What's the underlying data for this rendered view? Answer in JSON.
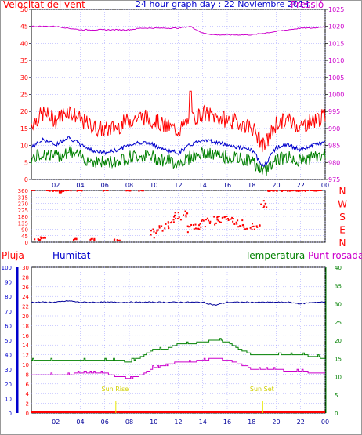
{
  "header": {
    "left_title": "Velocitat del vent",
    "center_title": "24 hour graph day : 22 Noviembre 2014",
    "right_title": "Pressió"
  },
  "lower_header": {
    "pluja": "Pluja",
    "humitat": "Humitat",
    "temperatura": "Temperatura",
    "punt_rosada": "Punt rosada"
  },
  "colors": {
    "wind_speed": "#ff0000",
    "wind_gust": "#ff0000",
    "wind_avg": "#0000cc",
    "wind_low": "#008000",
    "pressure": "#cc00cc",
    "humidity": "#000099",
    "temperature": "#008000",
    "dewpoint": "#cc00cc",
    "rain": "#ff0000",
    "sun": "#e8e800",
    "grid": "#9999ff"
  },
  "annotations": {
    "sunrise": "Sun Rise",
    "sunset": "Sun Set"
  },
  "chart_data": [
    {
      "type": "line",
      "title": "24 hour graph day : 22 Noviembre 2014",
      "xlabel": "",
      "ylabel_left": "Velocitat del vent",
      "ylabel_right": "Pressió",
      "x_tick_labels": [
        "02",
        "04",
        "06",
        "08",
        "10",
        "12",
        "14",
        "16",
        "18",
        "20",
        "22",
        "00"
      ],
      "y_left_ticks": [
        "0",
        "5",
        "10",
        "15",
        "20",
        "25",
        "30",
        "35",
        "40",
        "45",
        "50"
      ],
      "y_right_ticks": [
        "975",
        "980",
        "985",
        "990",
        "995",
        "1000",
        "1005",
        "1010",
        "1015",
        "1020",
        "1025"
      ],
      "ylim_left": [
        0,
        50
      ],
      "ylim_right": [
        975,
        1025
      ],
      "grid": true,
      "hours": [
        0,
        1,
        2,
        3,
        4,
        5,
        6,
        7,
        8,
        9,
        10,
        11,
        12,
        13,
        14,
        15,
        16,
        17,
        18,
        19,
        20,
        21,
        22,
        23,
        24
      ],
      "series": [
        {
          "name": "Velocitat del vent",
          "axis": "left",
          "values": [
            11,
            14,
            12,
            15,
            12,
            10,
            9,
            10,
            12,
            13,
            12,
            10,
            9,
            12,
            14,
            13,
            12,
            11,
            10,
            4,
            11,
            12,
            10,
            12,
            13
          ]
        },
        {
          "name": "Pressió",
          "axis": "right",
          "values": [
            1020,
            1020,
            1020,
            1019.5,
            1019,
            1019,
            1019,
            1019,
            1019,
            1019.5,
            1019.5,
            1019.5,
            1019.5,
            1020,
            1018,
            1017.5,
            1017.5,
            1017.5,
            1017.5,
            1018,
            1018.5,
            1019,
            1019.5,
            1019.5,
            1020
          ]
        }
      ]
    },
    {
      "type": "scatter",
      "title": "",
      "ylabel": "",
      "y_ticks": [
        "0",
        "45",
        "90",
        "135",
        "180",
        "225",
        "270",
        "315",
        "360"
      ],
      "ylim": [
        0,
        360
      ],
      "direction_labels": [
        "N",
        "W",
        "S",
        "E",
        "N"
      ],
      "x_tick_labels": [],
      "points_hour": [
        0,
        0.5,
        1,
        1.5,
        2,
        2.5,
        3,
        3.5,
        4,
        5,
        6,
        7,
        8,
        9,
        10,
        10.5,
        11,
        11.5,
        12,
        12.5,
        13,
        13.5,
        14,
        14.5,
        15,
        15.5,
        16,
        16.5,
        17,
        17.5,
        18,
        18.5,
        19,
        19.5,
        20,
        20.5,
        21,
        21.5,
        22,
        22.5,
        23,
        23.5
      ],
      "points_deg": [
        360,
        20,
        30,
        360,
        360,
        350,
        360,
        20,
        360,
        20,
        360,
        15,
        360,
        360,
        60,
        90,
        120,
        160,
        180,
        200,
        100,
        110,
        130,
        150,
        150,
        160,
        170,
        150,
        130,
        120,
        110,
        100,
        270,
        360,
        360,
        360,
        360,
        360,
        360,
        360,
        360,
        360
      ]
    },
    {
      "type": "line",
      "title": "",
      "ylabel_far_left": "Pluja",
      "ylabel_left": "Humitat",
      "ylabel_right": "Temperatura",
      "ylabel_far_right": "Punt rosada",
      "x_tick_labels": [
        "02",
        "04",
        "06",
        "08",
        "10",
        "12",
        "14",
        "16",
        "18",
        "20",
        "22",
        "00"
      ],
      "y_humidity_ticks": [
        "0",
        "10",
        "20",
        "30",
        "40",
        "50",
        "60",
        "70",
        "80",
        "90",
        "100"
      ],
      "y_left_ticks": [
        "0",
        "2",
        "4",
        "6",
        "8",
        "10",
        "12",
        "14",
        "16",
        "18",
        "20",
        "22",
        "24",
        "26",
        "28",
        "30"
      ],
      "y_right_ticks": [
        "0",
        "5",
        "10",
        "15",
        "20",
        "25",
        "30",
        "35",
        "40"
      ],
      "ylim_humidity": [
        0,
        100
      ],
      "ylim_left": [
        0,
        30
      ],
      "ylim_right": [
        0,
        40
      ],
      "grid": true,
      "hours": [
        0,
        1,
        2,
        3,
        4,
        5,
        6,
        7,
        8,
        9,
        10,
        11,
        12,
        13,
        14,
        15,
        16,
        17,
        18,
        19,
        20,
        21,
        22,
        23,
        24
      ],
      "series": [
        {
          "name": "Humitat",
          "axis": "humidity",
          "values": [
            76,
            76,
            76,
            77,
            76,
            76,
            76,
            76,
            76,
            76,
            76,
            76,
            76,
            76,
            76,
            74,
            76,
            76,
            76,
            76,
            76,
            76,
            75,
            76,
            76
          ]
        },
        {
          "name": "Temperatura",
          "axis": "right",
          "values": [
            14.5,
            14.5,
            14.5,
            14.5,
            14.5,
            14.5,
            14.5,
            14.5,
            14,
            15.5,
            17.5,
            17.5,
            19,
            19,
            19.5,
            20,
            19.5,
            17.5,
            16,
            16,
            16,
            16,
            16,
            15.5,
            15
          ]
        },
        {
          "name": "Punt rosada",
          "axis": "right",
          "values": [
            10.5,
            10.5,
            10.5,
            10.5,
            11,
            11,
            11,
            10,
            9.5,
            10.5,
            12.5,
            13,
            14,
            14,
            14.5,
            15,
            14.5,
            13.5,
            12,
            12,
            12,
            11.5,
            11.5,
            11,
            11
          ]
        },
        {
          "name": "Pluja",
          "axis": "rain",
          "values": [
            0,
            0,
            0,
            0,
            0,
            0,
            0,
            0,
            0,
            0,
            0,
            0,
            0,
            0,
            0,
            0,
            0,
            0,
            0,
            0,
            0,
            0,
            0,
            0,
            0
          ]
        }
      ],
      "sun_rise_hour": 6.9,
      "sun_set_hour": 18.9
    }
  ]
}
